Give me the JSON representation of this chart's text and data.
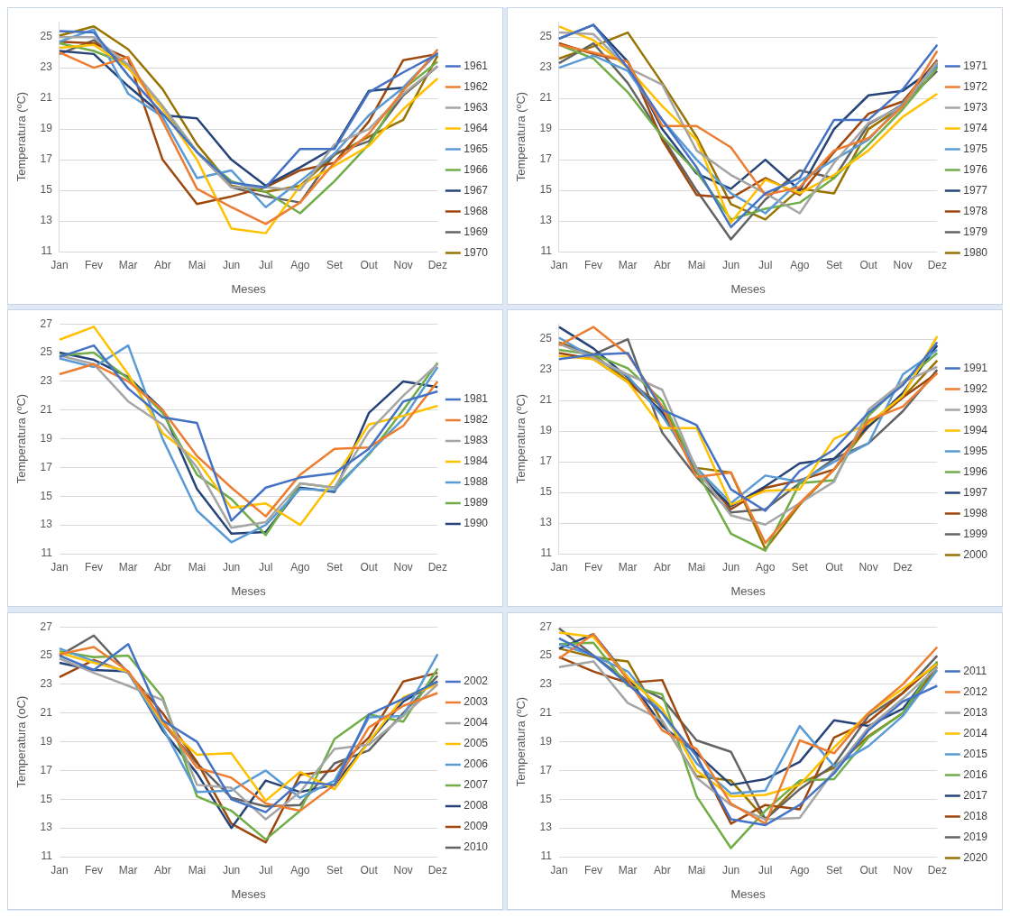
{
  "chart_data": [
    {
      "type": "line",
      "xlabel": "Meses",
      "ylabel": "Temperatura (ºC)",
      "categories": [
        "Jan",
        "Fev",
        "Mar",
        "Abr",
        "Mai",
        "Jun",
        "Jul",
        "Ago",
        "Set",
        "Out",
        "Nov",
        "Dez"
      ],
      "ylim": [
        11,
        26
      ],
      "yticks": [
        11,
        13,
        15,
        17,
        19,
        21,
        23,
        25
      ],
      "grid": "y",
      "legend": "right",
      "marker": "none",
      "line_style": "solid",
      "series": [
        {
          "name": "1961",
          "color": "#4472c4",
          "values": [
            25.4,
            25.3,
            22.5,
            20.0,
            17.5,
            15.5,
            15.2,
            17.7,
            17.7,
            21.4,
            22.7,
            23.9
          ]
        },
        {
          "name": "1962",
          "color": "#ed7d31",
          "values": [
            24.0,
            23.0,
            23.7,
            19.5,
            15.1,
            13.9,
            12.8,
            14.2,
            16.8,
            18.7,
            21.5,
            24.2
          ]
        },
        {
          "name": "1963",
          "color": "#a5a5a5",
          "values": [
            25.0,
            25.0,
            23.2,
            20.5,
            17.5,
            15.2,
            15.2,
            15.0,
            18.0,
            19.0,
            21.3,
            23.1
          ]
        },
        {
          "name": "1964",
          "color": "#ffc000",
          "values": [
            24.3,
            24.5,
            23.0,
            20.3,
            17.0,
            12.5,
            12.2,
            15.3,
            16.6,
            17.9,
            20.3,
            22.3
          ]
        },
        {
          "name": "1965",
          "color": "#5b9bd5",
          "values": [
            24.7,
            25.5,
            21.3,
            19.8,
            15.8,
            16.3,
            13.9,
            15.6,
            17.4,
            19.9,
            21.7,
            24.0
          ]
        },
        {
          "name": "1966",
          "color": "#70ad47",
          "values": [
            24.6,
            24.1,
            23.2,
            20.5,
            17.5,
            15.6,
            14.9,
            13.5,
            15.6,
            18.0,
            21.6,
            23.4
          ]
        },
        {
          "name": "1967",
          "color": "#264478",
          "values": [
            24.1,
            23.9,
            21.8,
            19.9,
            19.7,
            17.0,
            15.3,
            16.5,
            17.8,
            21.5,
            21.7,
            24.0
          ]
        },
        {
          "name": "1968",
          "color": "#9e480e",
          "values": [
            24.7,
            24.6,
            23.6,
            17.0,
            14.1,
            14.6,
            15.2,
            16.3,
            16.8,
            19.5,
            23.5,
            23.9
          ]
        },
        {
          "name": "1969",
          "color": "#636363",
          "values": [
            23.9,
            24.8,
            23.0,
            20.4,
            17.5,
            15.2,
            14.6,
            14.2,
            17.4,
            18.2,
            21.2,
            23.1
          ]
        },
        {
          "name": "1970",
          "color": "#997300",
          "values": [
            25.1,
            25.7,
            24.2,
            21.6,
            18.0,
            15.3,
            14.9,
            15.3,
            17.3,
            18.5,
            19.6,
            23.8
          ]
        }
      ]
    },
    {
      "type": "line",
      "xlabel": "Meses",
      "ylabel": "Temperatura (ºC)",
      "categories": [
        "Jan",
        "Fev",
        "Mar",
        "Abr",
        "Mai",
        "Jun",
        "Jul",
        "Ago",
        "Set",
        "Out",
        "Nov",
        "Dez"
      ],
      "ylim": [
        11,
        26
      ],
      "yticks": [
        11,
        13,
        15,
        17,
        19,
        21,
        23,
        25
      ],
      "grid": "y",
      "legend": "right",
      "marker": "none",
      "line_style": "solid",
      "series": [
        {
          "name": "1971",
          "color": "#4472c4",
          "values": [
            24.9,
            25.8,
            23.0,
            19.6,
            16.5,
            12.6,
            14.8,
            15.8,
            19.6,
            19.6,
            21.6,
            24.5
          ]
        },
        {
          "name": "1972",
          "color": "#ed7d31",
          "values": [
            24.5,
            24.0,
            23.4,
            19.2,
            19.2,
            17.8,
            14.7,
            15.2,
            17.6,
            18.4,
            20.5,
            24.1
          ]
        },
        {
          "name": "1973",
          "color": "#a5a5a5",
          "values": [
            25.3,
            25.2,
            23.0,
            21.9,
            17.6,
            16.0,
            14.8,
            13.5,
            16.8,
            19.4,
            20.5,
            23.4
          ]
        },
        {
          "name": "1974",
          "color": "#ffc000",
          "values": [
            25.7,
            24.8,
            23.0,
            20.5,
            18.3,
            12.9,
            15.7,
            14.8,
            16.0,
            17.6,
            19.8,
            21.3
          ]
        },
        {
          "name": "1975",
          "color": "#5b9bd5",
          "values": [
            23.0,
            23.8,
            22.8,
            19.6,
            17.0,
            14.8,
            13.5,
            15.6,
            17.0,
            18.3,
            20.7,
            23.2
          ]
        },
        {
          "name": "1976",
          "color": "#70ad47",
          "values": [
            24.5,
            23.6,
            21.4,
            18.5,
            16.2,
            13.1,
            13.8,
            14.2,
            15.8,
            18.0,
            20.3,
            23.0
          ]
        },
        {
          "name": "1977",
          "color": "#264478",
          "values": [
            24.9,
            25.8,
            23.4,
            19.0,
            16.1,
            15.1,
            17.0,
            15.0,
            19.0,
            21.2,
            21.5,
            23.1
          ]
        },
        {
          "name": "1978",
          "color": "#9e480e",
          "values": [
            24.6,
            23.9,
            23.4,
            18.3,
            14.7,
            14.5,
            15.8,
            14.7,
            17.5,
            20.0,
            20.8,
            23.5
          ]
        },
        {
          "name": "1979",
          "color": "#636363",
          "values": [
            23.3,
            24.6,
            22.0,
            18.5,
            15.0,
            11.8,
            14.4,
            16.3,
            15.8,
            19.3,
            20.6,
            22.8
          ]
        },
        {
          "name": "1980",
          "color": "#997300",
          "values": [
            23.6,
            24.4,
            25.3,
            22.0,
            18.5,
            14.1,
            13.1,
            15.1,
            14.8,
            19.0,
            20.5,
            23.3
          ]
        }
      ]
    },
    {
      "type": "line",
      "xlabel": "Meses",
      "ylabel": "Temperatura (ºC)",
      "categories": [
        "Jan",
        "Fev",
        "Mar",
        "Abr",
        "Mai",
        "Jun",
        "Jul",
        "Ago",
        "Set",
        "Out",
        "Nov",
        "Dez"
      ],
      "ylim": [
        11,
        27
      ],
      "yticks": [
        11,
        13,
        15,
        17,
        19,
        21,
        23,
        25,
        27
      ],
      "grid": "y",
      "legend": "right",
      "marker": "none",
      "line_style": "solid",
      "series": [
        {
          "name": "1981",
          "color": "#4472c4",
          "values": [
            24.7,
            25.5,
            22.5,
            20.5,
            20.1,
            13.3,
            15.6,
            16.3,
            16.6,
            18.3,
            21.6,
            22.3
          ]
        },
        {
          "name": "1982",
          "color": "#ed7d31",
          "values": [
            23.5,
            24.2,
            23.0,
            21.0,
            17.8,
            15.6,
            13.6,
            16.5,
            18.3,
            18.4,
            19.9,
            23.0
          ]
        },
        {
          "name": "1983",
          "color": "#a5a5a5",
          "values": [
            24.8,
            24.2,
            21.6,
            20.0,
            17.0,
            12.8,
            13.2,
            15.9,
            15.6,
            19.5,
            22.0,
            24.2
          ]
        },
        {
          "name": "1984",
          "color": "#ffc000",
          "values": [
            25.9,
            26.8,
            23.5,
            19.4,
            17.5,
            14.2,
            14.5,
            13.0,
            16.2,
            20.0,
            20.6,
            21.3
          ]
        },
        {
          "name": "1988",
          "color": "#5b9bd5",
          "values": [
            24.6,
            24.0,
            25.5,
            19.0,
            14.0,
            11.8,
            13.0,
            15.5,
            15.4,
            18.0,
            20.4,
            24.0
          ]
        },
        {
          "name": "1989",
          "color": "#70ad47",
          "values": [
            24.8,
            25.0,
            23.2,
            20.8,
            16.5,
            14.8,
            12.3,
            15.9,
            15.6,
            17.9,
            21.0,
            24.3
          ]
        },
        {
          "name": "1990",
          "color": "#264478",
          "values": [
            25.0,
            24.5,
            23.3,
            21.0,
            15.5,
            12.4,
            12.5,
            15.6,
            15.3,
            20.8,
            23.0,
            22.6
          ]
        }
      ]
    },
    {
      "type": "line",
      "xlabel": "Meses",
      "ylabel": "Temperatura (ºC)",
      "categories": [
        "Jan",
        "Fev",
        "Mar",
        "Abr",
        "Mai",
        "Jun",
        "Ago",
        "Set",
        "Out",
        "Nov",
        "Dez",
        null
      ],
      "ylim": [
        11,
        26
      ],
      "yticks": [
        11,
        13,
        15,
        17,
        19,
        21,
        23,
        25
      ],
      "grid": "y",
      "legend": "right",
      "marker": "none",
      "line_style": "solid",
      "series": [
        {
          "name": "1991",
          "color": "#4472c4",
          "values": [
            23.7,
            24.0,
            24.1,
            20.4,
            19.4,
            15.2,
            13.8,
            16.4,
            17.8,
            20.2,
            22.0,
            24.8
          ]
        },
        {
          "name": "1992",
          "color": "#ed7d31",
          "values": [
            24.6,
            25.8,
            24.0,
            20.6,
            16.0,
            16.3,
            11.7,
            14.3,
            16.5,
            19.7,
            20.6,
            22.8
          ]
        },
        {
          "name": "1993",
          "color": "#a5a5a5",
          "values": [
            24.7,
            23.8,
            22.7,
            21.7,
            16.5,
            13.5,
            12.9,
            14.3,
            15.7,
            20.4,
            22.2,
            23.2
          ]
        },
        {
          "name": "1994",
          "color": "#ffc000",
          "values": [
            23.9,
            23.7,
            22.2,
            19.2,
            19.2,
            14.2,
            15.1,
            15.2,
            18.5,
            19.5,
            21.3,
            25.2
          ]
        },
        {
          "name": "1995",
          "color": "#5b9bd5",
          "values": [
            25.1,
            23.8,
            22.6,
            20.0,
            16.6,
            14.3,
            16.1,
            15.7,
            17.0,
            18.2,
            22.7,
            24.3
          ]
        },
        {
          "name": "1996",
          "color": "#70ad47",
          "values": [
            24.3,
            24.0,
            23.1,
            21.0,
            16.4,
            12.3,
            11.2,
            15.6,
            15.8,
            20.0,
            22.2,
            24.1
          ]
        },
        {
          "name": "1997",
          "color": "#264478",
          "values": [
            25.8,
            24.4,
            22.5,
            20.2,
            16.3,
            14.1,
            15.4,
            16.9,
            17.2,
            19.3,
            21.5,
            24.6
          ]
        },
        {
          "name": "1998",
          "color": "#9e480e",
          "values": [
            24.1,
            23.7,
            22.2,
            20.3,
            16.5,
            13.9,
            15.3,
            15.8,
            16.5,
            19.5,
            21.2,
            22.8
          ]
        },
        {
          "name": "1999",
          "color": "#636363",
          "values": [
            24.7,
            24.0,
            25.0,
            18.9,
            16.0,
            13.7,
            13.9,
            15.6,
            17.2,
            18.2,
            20.3,
            23.0
          ]
        },
        {
          "name": "2000",
          "color": "#997300",
          "values": [
            24.8,
            24.0,
            22.3,
            20.6,
            16.6,
            16.3,
            11.3,
            14.2,
            16.5,
            19.3,
            21.2,
            23.6
          ]
        }
      ]
    },
    {
      "type": "line",
      "xlabel": "Meses",
      "ylabel": "Temperatura (oC)",
      "categories": [
        "Jan",
        "Fev",
        "Mar",
        "Abr",
        "Mai",
        "Jun",
        "Jul",
        "Ago",
        "Set",
        "Out",
        "Nov",
        "Dez"
      ],
      "ylim": [
        11,
        27
      ],
      "yticks": [
        11,
        13,
        15,
        17,
        19,
        21,
        23,
        25,
        27
      ],
      "grid": "y",
      "legend": "right",
      "marker": "none",
      "line_style": "solid",
      "series": [
        {
          "name": "2002",
          "color": "#4472c4",
          "values": [
            25.0,
            24.0,
            25.8,
            20.5,
            19.0,
            15.0,
            14.1,
            16.2,
            16.0,
            20.9,
            22.0,
            23.2
          ]
        },
        {
          "name": "2003",
          "color": "#ed7d31",
          "values": [
            25.1,
            25.6,
            23.9,
            20.5,
            17.2,
            16.5,
            14.7,
            14.2,
            16.0,
            20.0,
            21.5,
            22.4
          ]
        },
        {
          "name": "2004",
          "color": "#a5a5a5",
          "values": [
            24.8,
            23.8,
            22.9,
            21.9,
            16.0,
            15.8,
            13.6,
            15.5,
            18.5,
            18.8,
            20.8,
            23.0
          ]
        },
        {
          "name": "2005",
          "color": "#ffc000",
          "values": [
            25.2,
            24.5,
            23.9,
            20.3,
            18.1,
            18.2,
            14.9,
            16.9,
            15.7,
            19.0,
            22.1,
            23.0
          ]
        },
        {
          "name": "2006",
          "color": "#5b9bd5",
          "values": [
            25.5,
            24.6,
            23.8,
            20.0,
            15.5,
            15.6,
            17.0,
            15.1,
            16.3,
            20.7,
            20.8,
            25.1
          ]
        },
        {
          "name": "2007",
          "color": "#70ad47",
          "values": [
            25.3,
            24.9,
            25.0,
            22.1,
            15.2,
            14.2,
            12.2,
            14.2,
            19.2,
            20.9,
            20.4,
            24.1
          ]
        },
        {
          "name": "2008",
          "color": "#264478",
          "values": [
            24.5,
            24.0,
            23.9,
            19.8,
            16.8,
            13.0,
            16.3,
            15.5,
            16.0,
            19.0,
            21.8,
            23.2
          ]
        },
        {
          "name": "2009",
          "color": "#9e480e",
          "values": [
            23.5,
            24.7,
            23.8,
            21.0,
            17.6,
            13.3,
            12.0,
            16.7,
            17.0,
            19.3,
            23.2,
            23.8
          ]
        },
        {
          "name": "2010",
          "color": "#636363",
          "values": [
            25.0,
            26.4,
            23.8,
            20.3,
            17.5,
            15.1,
            14.5,
            14.6,
            17.5,
            18.4,
            21.0,
            23.6
          ]
        }
      ]
    },
    {
      "type": "line",
      "xlabel": "Meses",
      "ylabel": "Temperatura (ºC)",
      "categories": [
        "Jan",
        "Fev",
        "Mar",
        "Abr",
        "Mai",
        "Jun",
        "Jul",
        "Ago",
        "Set",
        "Out",
        "Nov",
        "Dez"
      ],
      "ylim": [
        11,
        27
      ],
      "yticks": [
        11,
        13,
        15,
        17,
        19,
        21,
        23,
        25,
        27
      ],
      "grid": "y",
      "legend": "right",
      "marker": "none",
      "line_style": "solid",
      "series": [
        {
          "name": "2011",
          "color": "#4472c4",
          "values": [
            26.2,
            25.0,
            23.0,
            21.0,
            18.0,
            13.6,
            13.2,
            14.6,
            16.8,
            19.8,
            21.8,
            22.9
          ]
        },
        {
          "name": "2012",
          "color": "#ed7d31",
          "values": [
            24.8,
            26.5,
            23.3,
            19.8,
            18.5,
            14.7,
            13.3,
            19.1,
            18.2,
            21.0,
            23.0,
            25.6
          ]
        },
        {
          "name": "2013",
          "color": "#a5a5a5",
          "values": [
            24.2,
            24.6,
            21.7,
            20.5,
            16.5,
            14.6,
            13.6,
            13.7,
            17.0,
            20.0,
            22.0,
            24.2
          ]
        },
        {
          "name": "2014",
          "color": "#ffc000",
          "values": [
            26.6,
            26.3,
            23.5,
            21.3,
            17.0,
            15.2,
            15.3,
            16.0,
            18.6,
            21.0,
            22.7,
            24.4
          ]
        },
        {
          "name": "2015",
          "color": "#5b9bd5",
          "values": [
            25.8,
            25.0,
            23.9,
            21.0,
            17.5,
            15.4,
            15.6,
            20.1,
            17.3,
            18.7,
            20.8,
            24.0
          ]
        },
        {
          "name": "2016",
          "color": "#70ad47",
          "values": [
            25.8,
            25.9,
            22.9,
            22.3,
            15.2,
            11.6,
            14.2,
            16.3,
            16.4,
            19.3,
            21.0,
            24.6
          ]
        },
        {
          "name": "2017",
          "color": "#264478",
          "values": [
            25.5,
            26.5,
            23.5,
            20.1,
            18.2,
            16.0,
            16.4,
            17.6,
            20.5,
            20.1,
            21.3,
            24.4
          ]
        },
        {
          "name": "2018",
          "color": "#9e480e",
          "values": [
            24.9,
            23.9,
            23.1,
            23.3,
            18.0,
            13.3,
            14.6,
            14.3,
            19.3,
            20.4,
            22.4,
            24.5
          ]
        },
        {
          "name": "2019",
          "color": "#636363",
          "values": [
            26.9,
            25.0,
            23.2,
            22.0,
            19.1,
            18.3,
            13.6,
            15.7,
            17.4,
            20.8,
            22.4,
            25.0
          ]
        },
        {
          "name": "2020",
          "color": "#997300",
          "values": [
            25.5,
            24.9,
            24.6,
            20.4,
            16.6,
            16.3,
            13.6,
            16.1,
            17.2,
            19.4,
            21.0,
            24.2
          ]
        }
      ]
    }
  ]
}
